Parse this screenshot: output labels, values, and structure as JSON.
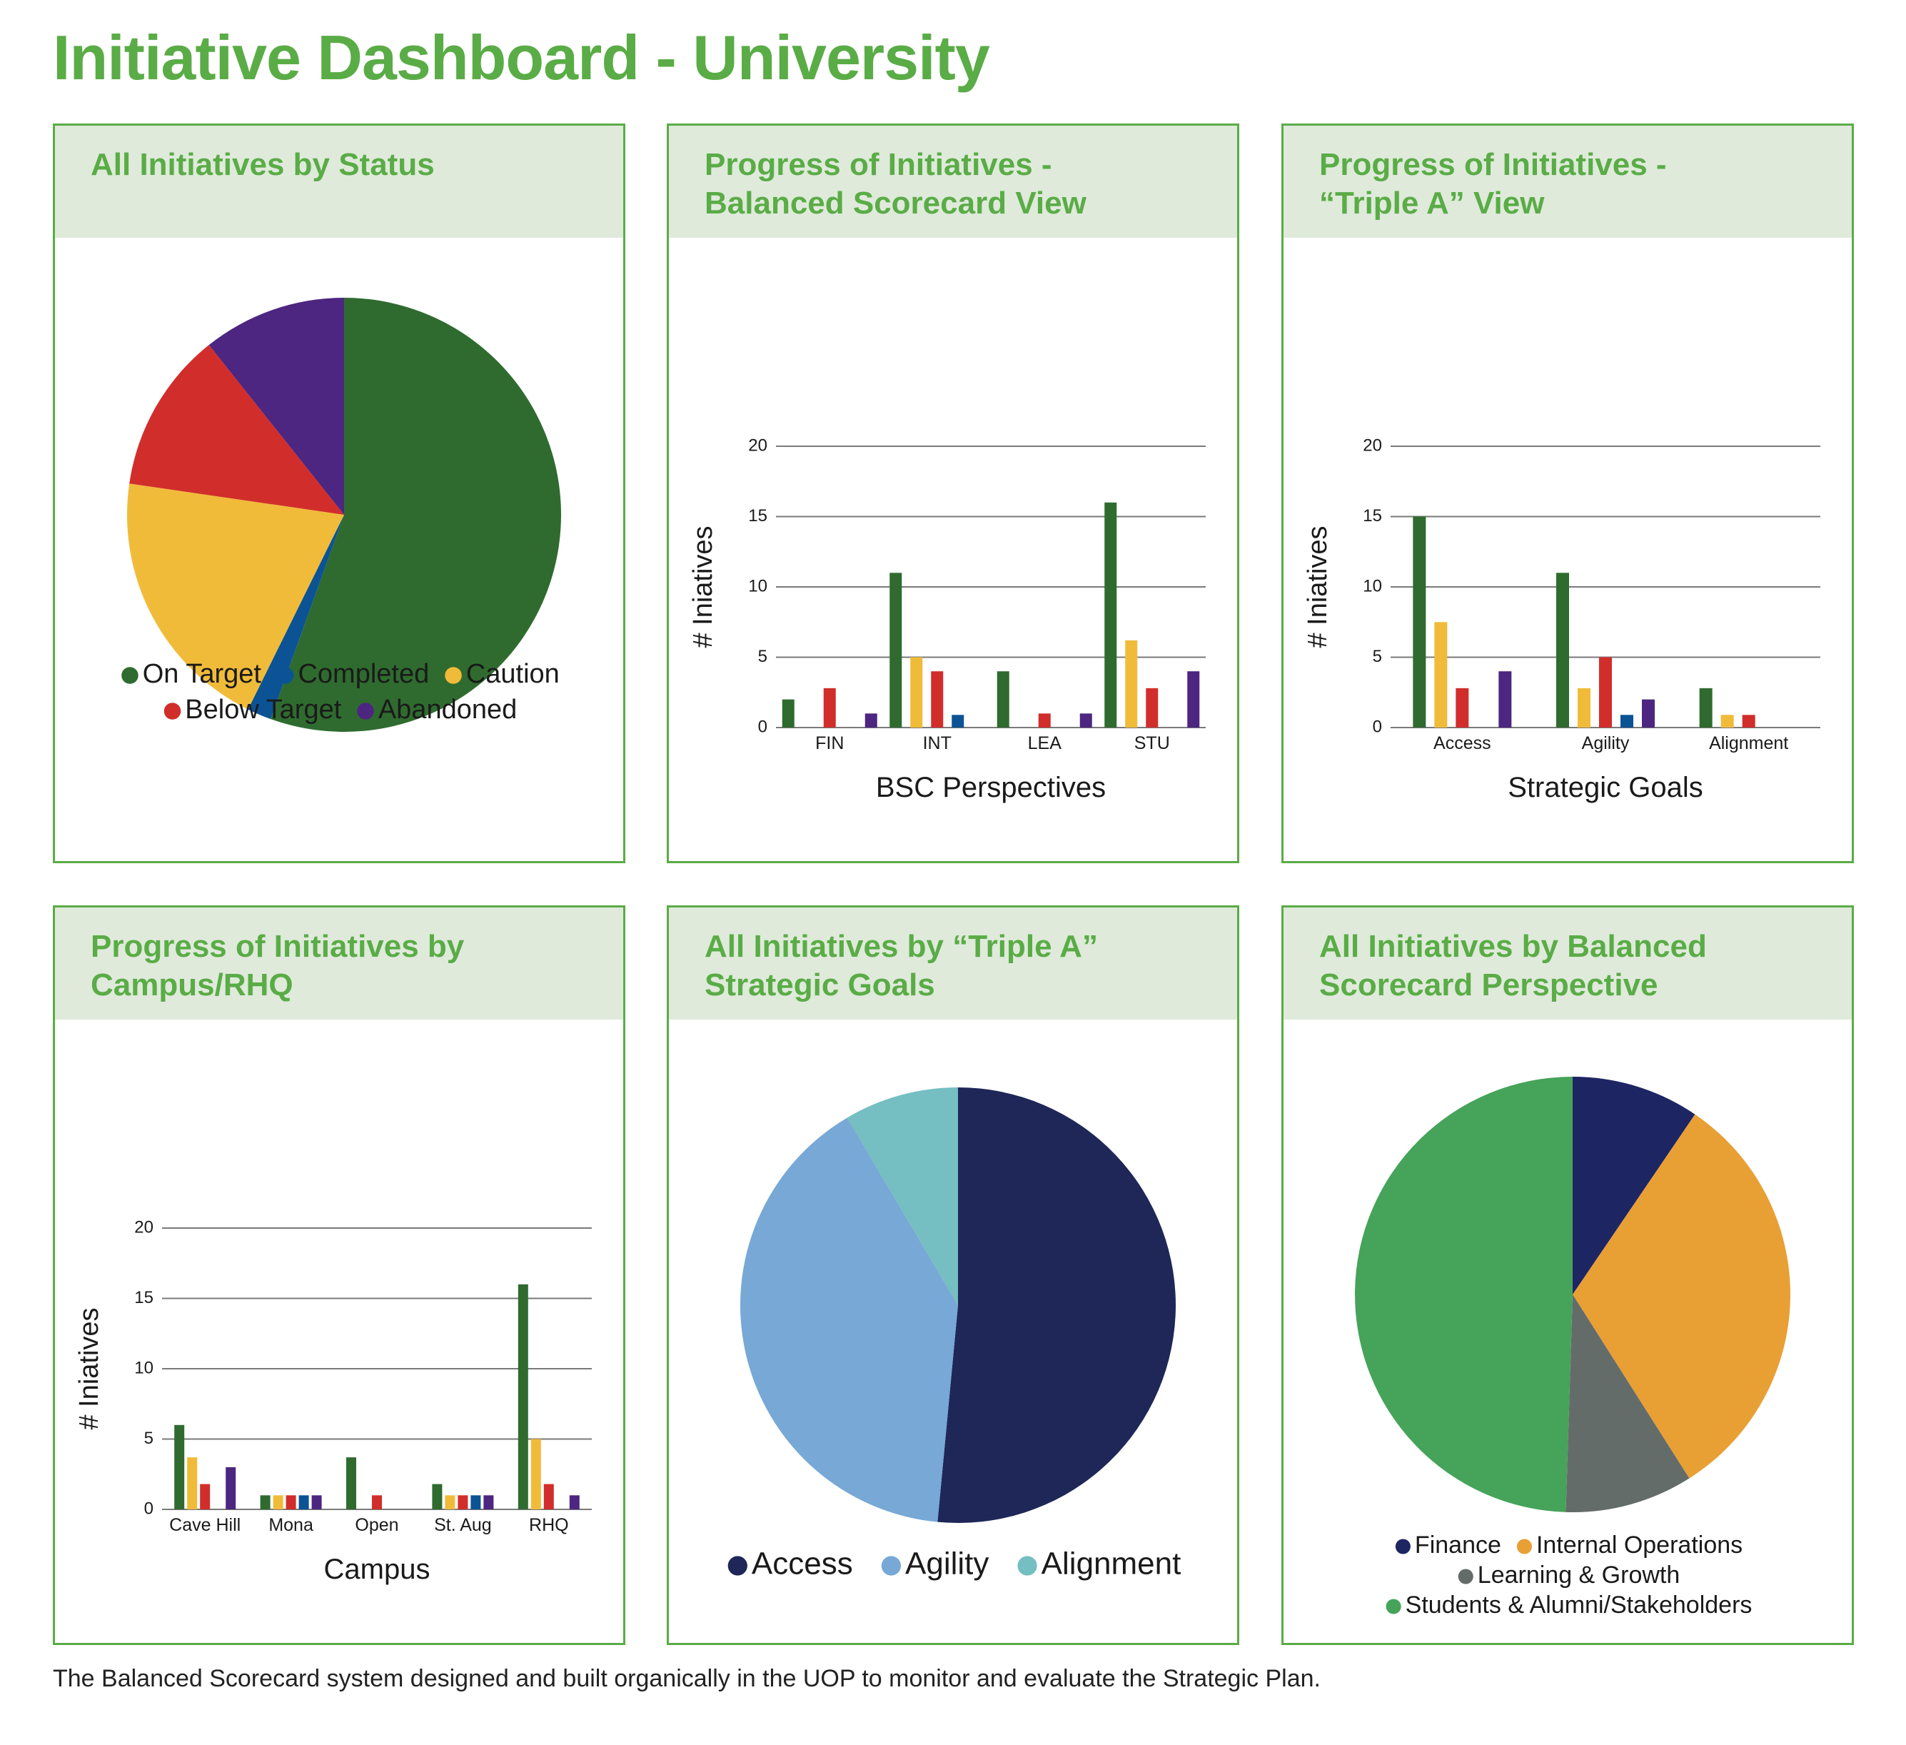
{
  "title": "Initiative Dashboard - University",
  "footnote": "The Balanced Scorecard system designed and built organically in the UOP to monitor and evaluate the Strategic Plan.",
  "status_colors": {
    "On Target": "#2f6b2f",
    "Completed": "#0b5394",
    "Caution": "#f1bb3a",
    "Below Target": "#d12e2b",
    "Abandoned": "#4c2680"
  },
  "chart_data": [
    {
      "id": "status-pie",
      "type": "pie",
      "title": "All Initiatives by Status",
      "slices": [
        {
          "label": "On Target",
          "value": 55.5,
          "color": "#2f6b2f"
        },
        {
          "label": "Completed",
          "value": 1.8,
          "color": "#0b5394"
        },
        {
          "label": "Caution",
          "value": 20.0,
          "color": "#f1bb3a"
        },
        {
          "label": "Below Target",
          "value": 12.0,
          "color": "#d12e2b"
        },
        {
          "label": "Abandoned",
          "value": 10.7,
          "color": "#4c2680"
        }
      ],
      "legend_rows": [
        [
          "On Target",
          "Completed",
          "Caution"
        ],
        [
          "Below Target",
          "Abandoned"
        ]
      ]
    },
    {
      "id": "bsc-bar",
      "type": "bar",
      "title": "Progress of Initiatives -\nBalanced Scorecard View",
      "categories": [
        "FIN",
        "INT",
        "LEA",
        "STU"
      ],
      "xlabel": "BSC Perspectives",
      "ylabel": "# Iniatives",
      "ylim": [
        0,
        20
      ],
      "yticks": [
        0,
        5,
        10,
        15,
        20
      ],
      "series": [
        {
          "name": "On Target",
          "values": [
            2,
            11,
            4,
            16
          ]
        },
        {
          "name": "Caution",
          "values": [
            0,
            5,
            0,
            6.2
          ]
        },
        {
          "name": "Below Target",
          "values": [
            2.8,
            4,
            1,
            2.8
          ]
        },
        {
          "name": "Completed",
          "values": [
            0,
            0.9,
            0,
            0
          ]
        },
        {
          "name": "Abandoned",
          "values": [
            1,
            0,
            1,
            4
          ]
        }
      ]
    },
    {
      "id": "triplea-bar",
      "type": "bar",
      "title": "Progress of Initiatives -\n“Triple A” View",
      "categories": [
        "Access",
        "Agility",
        "Alignment"
      ],
      "xlabel": "Strategic Goals",
      "ylabel": "# Iniatives",
      "ylim": [
        0,
        20
      ],
      "yticks": [
        0,
        5,
        10,
        15,
        20
      ],
      "series": [
        {
          "name": "On Target",
          "values": [
            15,
            11,
            2.8
          ]
        },
        {
          "name": "Caution",
          "values": [
            7.5,
            2.8,
            0.9
          ]
        },
        {
          "name": "Below Target",
          "values": [
            2.8,
            5,
            0.9
          ]
        },
        {
          "name": "Completed",
          "values": [
            0,
            0.9,
            0
          ]
        },
        {
          "name": "Abandoned",
          "values": [
            4,
            2,
            0
          ]
        }
      ]
    },
    {
      "id": "campus-bar",
      "type": "bar",
      "title": "Progress of Initiatives by\nCampus/RHQ",
      "categories": [
        "Cave Hill",
        "Mona",
        "Open",
        "St. Aug",
        "RHQ"
      ],
      "xlabel": "Campus",
      "ylabel": "# Iniatives",
      "ylim": [
        0,
        20
      ],
      "yticks": [
        0,
        5,
        10,
        15,
        20
      ],
      "series": [
        {
          "name": "On Target",
          "values": [
            6,
            1,
            3.7,
            1.8,
            16
          ]
        },
        {
          "name": "Caution",
          "values": [
            3.7,
            1,
            0,
            1,
            5
          ]
        },
        {
          "name": "Below Target",
          "values": [
            1.8,
            1,
            1,
            1,
            1.8
          ]
        },
        {
          "name": "Completed",
          "values": [
            0,
            1,
            0,
            1,
            0
          ]
        },
        {
          "name": "Abandoned",
          "values": [
            3,
            1,
            0,
            1,
            1
          ]
        }
      ]
    },
    {
      "id": "triplea-pie",
      "type": "pie",
      "title": "All Initiatives by “Triple A”\nStrategic Goals",
      "slices": [
        {
          "label": "Access",
          "value": 51.5,
          "color": "#1e2758"
        },
        {
          "label": "Agility",
          "value": 40.0,
          "color": "#77a8d6"
        },
        {
          "label": "Alignment",
          "value": 8.5,
          "color": "#75bec1"
        }
      ],
      "legend_rows": [
        [
          "Access",
          "Agility",
          "Alignment"
        ]
      ]
    },
    {
      "id": "bsc-pie",
      "type": "pie",
      "title": "All Initiatives by Balanced\nScorecard Perspective",
      "slices": [
        {
          "label": "Finance",
          "value": 9.5,
          "color": "#1e2563"
        },
        {
          "label": "Internal Operations",
          "value": 31.5,
          "color": "#e89f34"
        },
        {
          "label": "Learning & Growth",
          "value": 9.5,
          "color": "#646c6a"
        },
        {
          "label": "Students & Alumni/Stakeholders",
          "value": 49.5,
          "color": "#46a35a"
        }
      ],
      "legend_rows": [
        [
          "Finance",
          "Internal Operations"
        ],
        [
          "Learning & Growth"
        ],
        [
          "Students & Alumni/Stakeholders"
        ]
      ]
    }
  ]
}
